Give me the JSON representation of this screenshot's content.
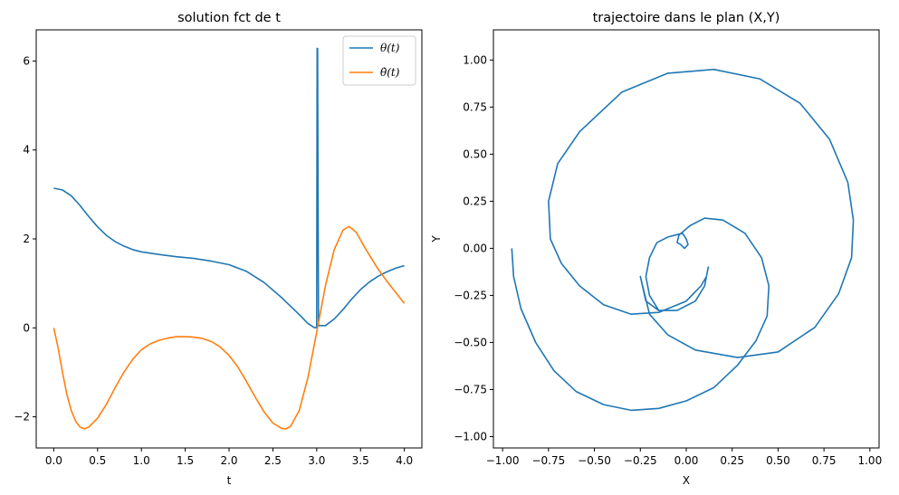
{
  "chart_data": [
    {
      "type": "line",
      "title": "solution fct de t",
      "xlabel": "t",
      "ylabel": "",
      "xlim": [
        -0.2,
        4.2
      ],
      "ylim": [
        -2.7,
        6.7
      ],
      "xticks": [
        0.0,
        0.5,
        1.0,
        1.5,
        2.0,
        2.5,
        3.0,
        3.5,
        4.0
      ],
      "xtick_labels": [
        "0.0",
        "0.5",
        "1.0",
        "1.5",
        "2.0",
        "2.5",
        "3.0",
        "3.5",
        "4.0"
      ],
      "yticks": [
        -2,
        0,
        2,
        4,
        6
      ],
      "ytick_labels": [
        "−2",
        "0",
        "2",
        "4",
        "6"
      ],
      "legend": "top-right",
      "grid": false,
      "series": [
        {
          "name": "θ(t)",
          "color": "#1f77b4",
          "points": [
            [
              0,
              3.14
            ],
            [
              0.1,
              3.1
            ],
            [
              0.2,
              2.97
            ],
            [
              0.3,
              2.75
            ],
            [
              0.4,
              2.5
            ],
            [
              0.5,
              2.27
            ],
            [
              0.6,
              2.08
            ],
            [
              0.7,
              1.94
            ],
            [
              0.8,
              1.84
            ],
            [
              0.9,
              1.76
            ],
            [
              1.0,
              1.71
            ],
            [
              1.2,
              1.65
            ],
            [
              1.4,
              1.6
            ],
            [
              1.6,
              1.56
            ],
            [
              1.8,
              1.5
            ],
            [
              2.0,
              1.42
            ],
            [
              2.2,
              1.27
            ],
            [
              2.4,
              1.02
            ],
            [
              2.6,
              0.68
            ],
            [
              2.8,
              0.3
            ],
            [
              2.9,
              0.1
            ],
            [
              2.97,
              0.01
            ],
            [
              2.99,
              0.0
            ],
            [
              3.0,
              0.02
            ],
            [
              3.005,
              6.28
            ],
            [
              3.01,
              6.28
            ],
            [
              3.02,
              0.05
            ],
            [
              3.1,
              0.05
            ],
            [
              3.2,
              0.2
            ],
            [
              3.3,
              0.41
            ],
            [
              3.4,
              0.65
            ],
            [
              3.5,
              0.86
            ],
            [
              3.6,
              1.03
            ],
            [
              3.7,
              1.16
            ],
            [
              3.8,
              1.26
            ],
            [
              3.9,
              1.34
            ],
            [
              4.0,
              1.4
            ]
          ]
        },
        {
          "name": "θ̇(t)",
          "color": "#ff7f0e",
          "points": [
            [
              0,
              0.0
            ],
            [
              0.05,
              -0.45
            ],
            [
              0.1,
              -1.0
            ],
            [
              0.15,
              -1.5
            ],
            [
              0.2,
              -1.86
            ],
            [
              0.25,
              -2.1
            ],
            [
              0.3,
              -2.23
            ],
            [
              0.35,
              -2.27
            ],
            [
              0.4,
              -2.23
            ],
            [
              0.5,
              -2.03
            ],
            [
              0.6,
              -1.72
            ],
            [
              0.7,
              -1.35
            ],
            [
              0.8,
              -1.0
            ],
            [
              0.9,
              -0.71
            ],
            [
              1.0,
              -0.49
            ],
            [
              1.1,
              -0.36
            ],
            [
              1.2,
              -0.28
            ],
            [
              1.3,
              -0.23
            ],
            [
              1.4,
              -0.2
            ],
            [
              1.5,
              -0.2
            ],
            [
              1.6,
              -0.21
            ],
            [
              1.7,
              -0.24
            ],
            [
              1.8,
              -0.31
            ],
            [
              1.9,
              -0.43
            ],
            [
              2.0,
              -0.62
            ],
            [
              2.1,
              -0.88
            ],
            [
              2.2,
              -1.21
            ],
            [
              2.3,
              -1.56
            ],
            [
              2.4,
              -1.89
            ],
            [
              2.5,
              -2.14
            ],
            [
              2.6,
              -2.26
            ],
            [
              2.65,
              -2.27
            ],
            [
              2.7,
              -2.22
            ],
            [
              2.8,
              -1.86
            ],
            [
              2.9,
              -1.12
            ],
            [
              3.0,
              -0.1
            ],
            [
              3.1,
              0.95
            ],
            [
              3.2,
              1.76
            ],
            [
              3.3,
              2.2
            ],
            [
              3.37,
              2.28
            ],
            [
              3.45,
              2.15
            ],
            [
              3.55,
              1.8
            ],
            [
              3.7,
              1.32
            ],
            [
              3.8,
              1.05
            ],
            [
              3.9,
              0.8
            ],
            [
              4.0,
              0.55
            ]
          ]
        }
      ]
    },
    {
      "type": "line",
      "title": "trajectoire dans le plan (X,Y)",
      "xlabel": "X",
      "ylabel": "Y",
      "xlim": [
        -1.05,
        1.05
      ],
      "ylim": [
        -1.06,
        1.16
      ],
      "xticks": [
        -1.0,
        -0.75,
        -0.5,
        -0.25,
        0.0,
        0.25,
        0.5,
        0.75,
        1.0
      ],
      "xtick_labels": [
        "−1.00",
        "−0.75",
        "−0.50",
        "−0.25",
        "0.00",
        "0.25",
        "0.50",
        "0.75",
        "1.00"
      ],
      "yticks": [
        -1.0,
        -0.75,
        -0.5,
        -0.25,
        0.0,
        0.25,
        0.5,
        0.75,
        1.0
      ],
      "ytick_labels": [
        "−1.00",
        "−0.75",
        "−0.50",
        "−0.25",
        "0.00",
        "0.25",
        "0.50",
        "0.75",
        "1.00"
      ],
      "grid": false,
      "series": [
        {
          "color": "#1f77b4",
          "points": [
            [
              -0.95,
              0.0
            ],
            [
              -0.94,
              -0.15
            ],
            [
              -0.9,
              -0.32
            ],
            [
              -0.82,
              -0.5
            ],
            [
              -0.72,
              -0.65
            ],
            [
              -0.6,
              -0.76
            ],
            [
              -0.45,
              -0.83
            ],
            [
              -0.3,
              -0.86
            ],
            [
              -0.15,
              -0.85
            ],
            [
              0.0,
              -0.81
            ],
            [
              0.15,
              -0.74
            ],
            [
              0.28,
              -0.62
            ],
            [
              0.38,
              -0.49
            ],
            [
              0.44,
              -0.36
            ],
            [
              0.45,
              -0.2
            ],
            [
              0.41,
              -0.05
            ],
            [
              0.32,
              0.08
            ],
            [
              0.2,
              0.15
            ],
            [
              0.1,
              0.16
            ],
            [
              0.02,
              0.12
            ],
            [
              -0.04,
              0.07
            ],
            [
              -0.05,
              0.03
            ],
            [
              -0.03,
              0.02
            ],
            [
              -0.01,
              0.0
            ],
            [
              0.01,
              0.02
            ],
            [
              0.0,
              0.05
            ],
            [
              -0.02,
              0.08
            ],
            [
              -0.06,
              0.07
            ],
            [
              -0.1,
              0.06
            ],
            [
              -0.16,
              0.03
            ],
            [
              -0.2,
              -0.05
            ],
            [
              -0.22,
              -0.15
            ],
            [
              -0.2,
              -0.25
            ],
            [
              -0.15,
              -0.33
            ],
            [
              -0.05,
              -0.33
            ],
            [
              0.05,
              -0.28
            ],
            [
              0.1,
              -0.2
            ],
            [
              0.12,
              -0.1
            ],
            [
              0.1,
              -0.2
            ],
            [
              0.05,
              -0.28
            ],
            [
              -0.05,
              -0.33
            ],
            [
              -0.15,
              -0.33
            ],
            [
              -0.22,
              -0.28
            ],
            [
              -0.25,
              -0.15
            ],
            [
              -0.2,
              -0.35
            ],
            [
              -0.1,
              -0.46
            ],
            [
              0.05,
              -0.54
            ],
            [
              0.28,
              -0.58
            ],
            [
              0.5,
              -0.55
            ],
            [
              0.7,
              -0.42
            ],
            [
              0.83,
              -0.24
            ],
            [
              0.9,
              -0.05
            ],
            [
              0.91,
              0.15
            ],
            [
              0.88,
              0.35
            ],
            [
              0.78,
              0.58
            ],
            [
              0.62,
              0.77
            ],
            [
              0.4,
              0.9
            ],
            [
              0.15,
              0.95
            ],
            [
              -0.1,
              0.93
            ],
            [
              -0.35,
              0.83
            ],
            [
              -0.58,
              0.62
            ],
            [
              -0.7,
              0.45
            ],
            [
              -0.75,
              0.25
            ],
            [
              -0.74,
              0.05
            ],
            [
              -0.68,
              -0.08
            ],
            [
              -0.58,
              -0.2
            ],
            [
              -0.45,
              -0.3
            ],
            [
              -0.3,
              -0.35
            ],
            [
              -0.15,
              -0.34
            ],
            [
              0.0,
              -0.28
            ],
            [
              0.08,
              -0.2
            ],
            [
              0.11,
              -0.15
            ],
            [
              0.12,
              -0.1
            ]
          ]
        }
      ]
    }
  ]
}
